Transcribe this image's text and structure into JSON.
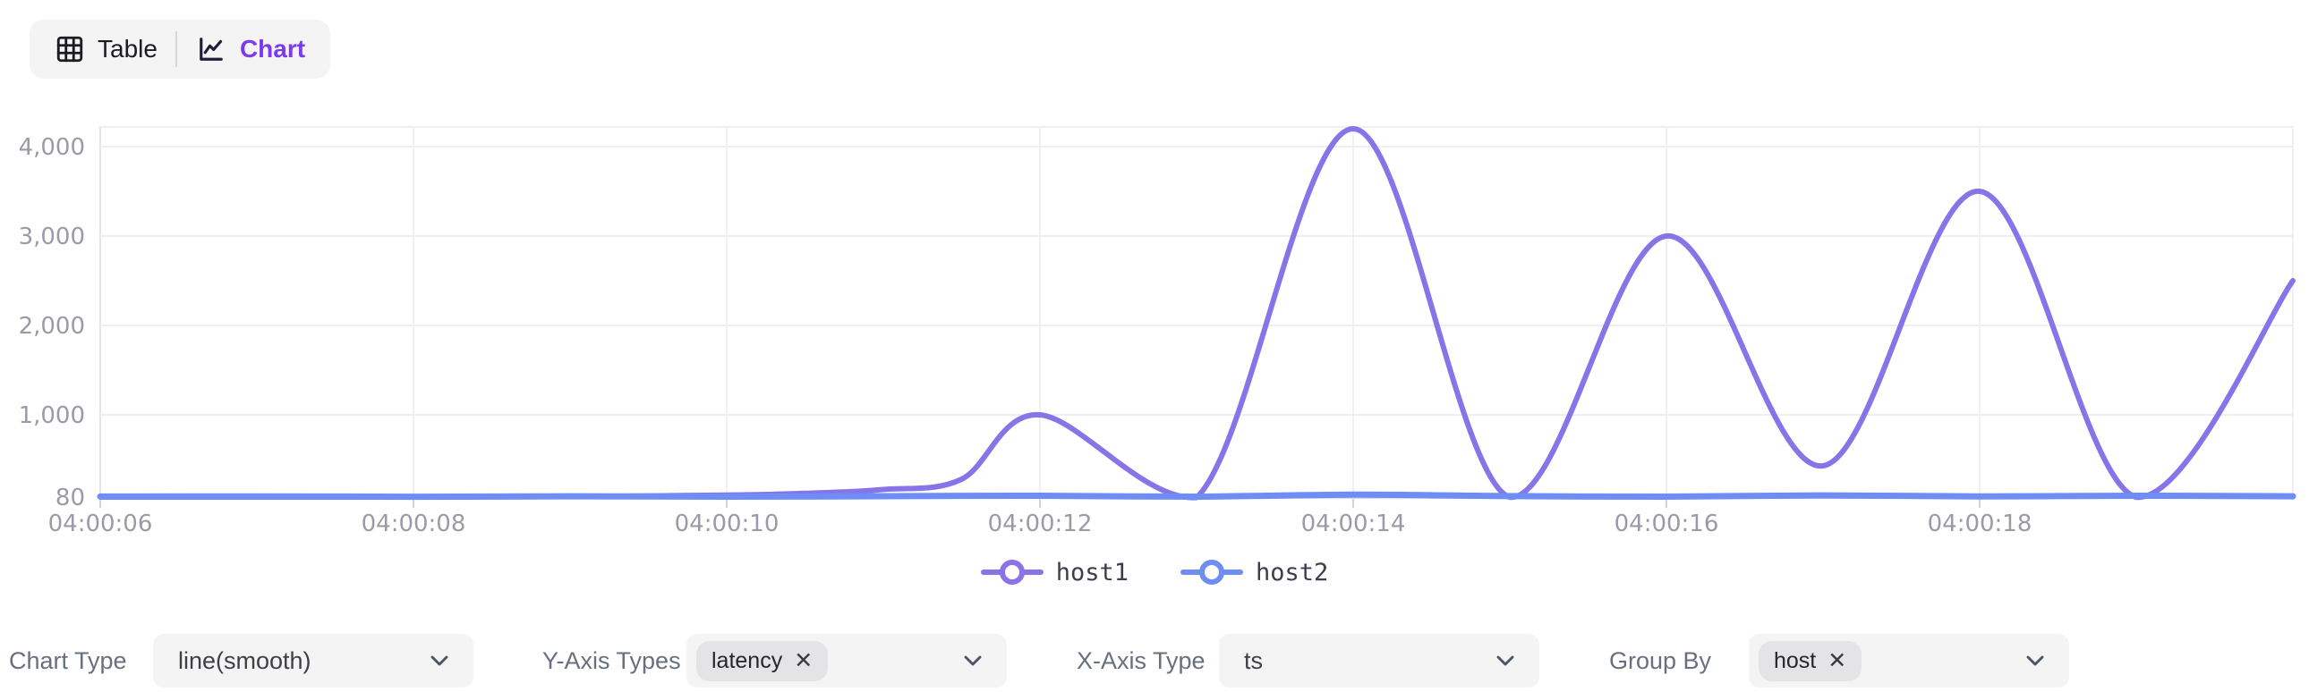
{
  "toggle": {
    "table_label": "Table",
    "chart_label": "Chart",
    "active": "Chart",
    "active_color": "#7c3aed"
  },
  "icons": {
    "remove": "✕"
  },
  "chart_data": {
    "type": "line",
    "smooth": true,
    "title": "",
    "xlabel": "",
    "ylabel": "",
    "x_ticks": [
      "04:00:06",
      "04:00:08",
      "04:00:10",
      "04:00:12",
      "04:00:14",
      "04:00:16",
      "04:00:18"
    ],
    "x_tick_seconds": [
      6,
      8,
      10,
      12,
      14,
      16,
      18
    ],
    "y_ticks": [
      {
        "v": 80,
        "label": "80"
      },
      {
        "v": 1000,
        "label": "1,000"
      },
      {
        "v": 2000,
        "label": "2,000"
      },
      {
        "v": 3000,
        "label": "3,000"
      },
      {
        "v": 4000,
        "label": "4,000"
      }
    ],
    "ylim": [
      80,
      4220
    ],
    "xlim_seconds": [
      6,
      20
    ],
    "grid": true,
    "legend_position": "bottom",
    "series": [
      {
        "name": "host1",
        "color": "#8873e8",
        "x": [
          6,
          7,
          8,
          9,
          10,
          10.5,
          11,
          11.5,
          12,
          13,
          14,
          15,
          16,
          17,
          18,
          19,
          20
        ],
        "values": [
          80,
          80,
          81,
          86,
          102,
          122,
          165,
          280,
          1000,
          75,
          4200,
          78,
          3000,
          430,
          3500,
          78,
          2500
        ]
      },
      {
        "name": "host2",
        "color": "#6e8ef5",
        "x": [
          6,
          7,
          8,
          9,
          10,
          11,
          12,
          13,
          14,
          15,
          16,
          17,
          18,
          19,
          20
        ],
        "values": [
          86,
          88,
          84,
          89,
          85,
          90,
          95,
          85,
          108,
          91,
          85,
          99,
          87,
          95,
          89
        ]
      }
    ]
  },
  "legend": [
    {
      "name": "host1",
      "color": "#8873e8"
    },
    {
      "name": "host2",
      "color": "#6e8ef5"
    }
  ],
  "controls": [
    {
      "label": "Chart Type",
      "value": "line(smooth)",
      "tags": []
    },
    {
      "label": "Y-Axis Types",
      "value": "",
      "tags": [
        "latency"
      ]
    },
    {
      "label": "X-Axis Type",
      "value": "ts",
      "tags": []
    },
    {
      "label": "Group By",
      "value": "",
      "tags": [
        "host"
      ]
    }
  ]
}
